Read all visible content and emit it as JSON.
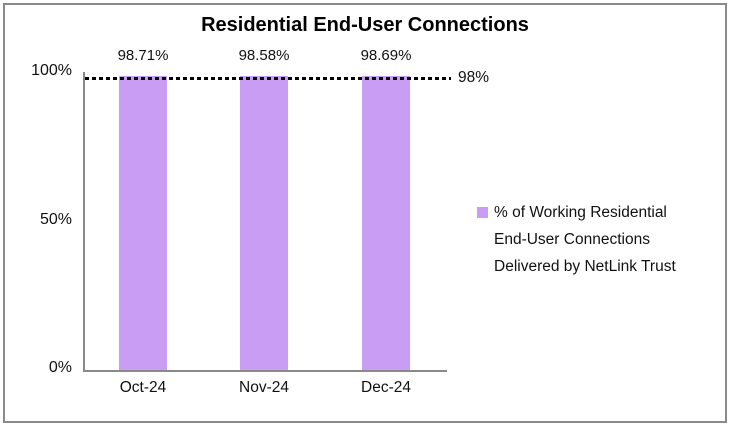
{
  "chart_data": {
    "type": "bar",
    "title": "Residential End-User Connections",
    "categories": [
      "Oct-24",
      "Nov-24",
      "Dec-24"
    ],
    "values": [
      98.71,
      98.58,
      98.69
    ],
    "data_labels": [
      "98.71%",
      "98.58%",
      "98.69%"
    ],
    "series": [
      {
        "name": "% of Working Residential End-User Connections Delivered by NetLink Trust",
        "values": [
          98.71,
          98.58,
          98.69
        ]
      }
    ],
    "legend_lines": [
      "% of Working Residential",
      "End-User Connections",
      "Delivered by NetLink Trust"
    ],
    "legend_position": "right",
    "xlabel": "",
    "ylabel": "",
    "y_ticks": [
      "100%",
      "50%",
      "0%"
    ],
    "ylim": [
      0,
      100
    ],
    "grid": false,
    "target_line": {
      "value": 98,
      "label": "98%",
      "style": "dotted",
      "color": "#000000"
    },
    "bar_color": "#C89DF3",
    "axis_color": "#898989",
    "frame_color": "#8a8a8a"
  }
}
